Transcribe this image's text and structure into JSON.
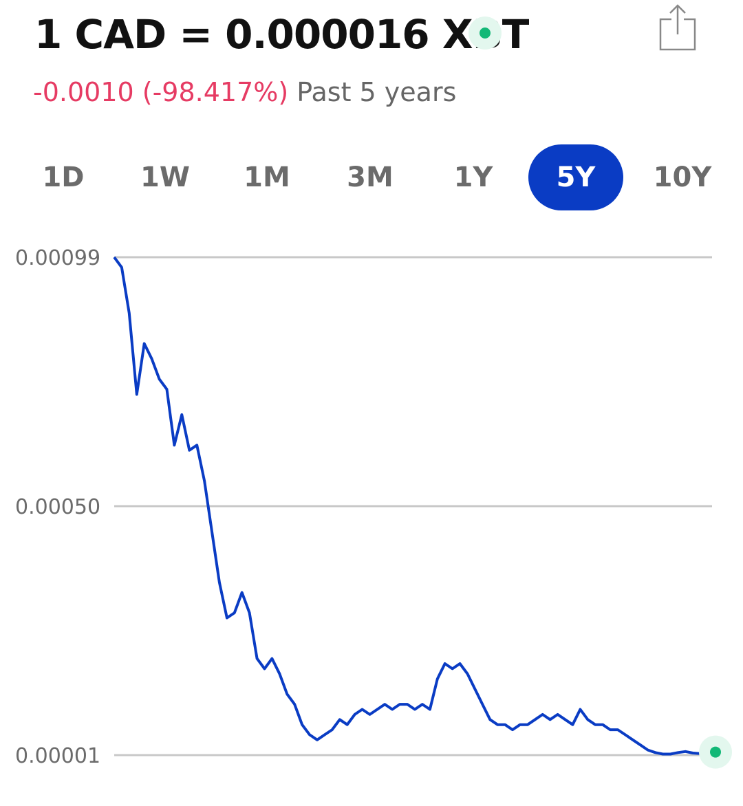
{
  "header": {
    "title": "1 CAD = 0.000016 XBT",
    "change": "-0.0010 (-98.417%)",
    "period": "Past 5 years"
  },
  "ranges": [
    "1D",
    "1W",
    "1M",
    "3M",
    "1Y",
    "5Y",
    "10Y"
  ],
  "selected_range": "5Y",
  "colors": {
    "accent": "#0a3cc4",
    "negative": "#e63b63",
    "live": "#13b877",
    "line": "#0a3cc4"
  },
  "icons": {
    "live_indicator": "live-dot-icon",
    "share": "share-icon"
  },
  "chart_data": {
    "type": "line",
    "y_tick_labels": [
      "0.00099",
      "0.00050",
      "0.00001"
    ],
    "ylim": [
      1e-05,
      0.00099
    ],
    "grid": true,
    "series": [
      {
        "values": [
          0.00099,
          0.00097,
          0.00088,
          0.00072,
          0.00082,
          0.00079,
          0.00075,
          0.00073,
          0.00062,
          0.00068,
          0.00061,
          0.00062,
          0.00055,
          0.00045,
          0.00035,
          0.00028,
          0.00029,
          0.00033,
          0.00029,
          0.0002,
          0.00018,
          0.0002,
          0.00017,
          0.00013,
          0.00011,
          7e-05,
          5e-05,
          4e-05,
          5e-05,
          6e-05,
          8e-05,
          7e-05,
          9e-05,
          0.0001,
          9e-05,
          0.0001,
          0.00011,
          0.0001,
          0.00011,
          0.00011,
          0.0001,
          0.00011,
          0.0001,
          0.00016,
          0.00019,
          0.00018,
          0.00019,
          0.00017,
          0.00014,
          0.00011,
          8e-05,
          7e-05,
          7e-05,
          6e-05,
          7e-05,
          7e-05,
          8e-05,
          9e-05,
          8e-05,
          9e-05,
          8e-05,
          7e-05,
          0.0001,
          8e-05,
          7e-05,
          7e-05,
          6e-05,
          6e-05,
          5e-05,
          4e-05,
          3e-05,
          2e-05,
          1.5e-05,
          1.2e-05,
          1.2e-05,
          1.5e-05,
          1.7e-05,
          1.4e-05,
          1.3e-05,
          1.2e-05,
          1.6e-05
        ]
      }
    ]
  }
}
